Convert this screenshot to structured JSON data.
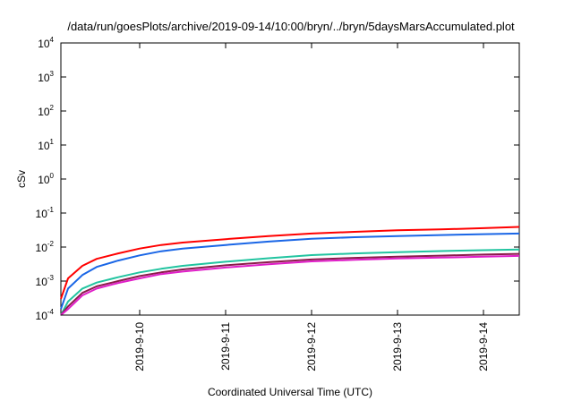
{
  "chart_data": {
    "type": "line",
    "title": "/data/run/goesPlots/archive/2019-09-14/10:00/bryn/../bryn/5daysMarsAccumulated.plot",
    "xlabel": "Coordinated Universal Time (UTC)",
    "ylabel": "cSv",
    "yscale": "log",
    "ylim": [
      0.0001,
      10000
    ],
    "xlim": [
      "2019-09-09 02:00",
      "2019-09-14 10:00"
    ],
    "y_ticks": [
      {
        "base": "10",
        "exp": "-4"
      },
      {
        "base": "10",
        "exp": "-3"
      },
      {
        "base": "10",
        "exp": "-2"
      },
      {
        "base": "10",
        "exp": "-1"
      },
      {
        "base": "10",
        "exp": "0"
      },
      {
        "base": "10",
        "exp": "1"
      },
      {
        "base": "10",
        "exp": "2"
      },
      {
        "base": "10",
        "exp": "3"
      },
      {
        "base": "10",
        "exp": "4"
      }
    ],
    "x_ticks": [
      "2019-9-10",
      "2019-9-11",
      "2019-9-12",
      "2019-9-13",
      "2019-9-14"
    ],
    "x": [
      "2019-09-09 02:00",
      "2019-09-09 04:00",
      "2019-09-09 08:00",
      "2019-09-09 12:00",
      "2019-09-09 18:00",
      "2019-09-10 00:00",
      "2019-09-10 06:00",
      "2019-09-10 12:00",
      "2019-09-11 00:00",
      "2019-09-11 12:00",
      "2019-09-12 00:00",
      "2019-09-12 12:00",
      "2019-09-13 00:00",
      "2019-09-13 12:00",
      "2019-09-14 00:00",
      "2019-09-14 10:00"
    ],
    "grid": false,
    "series": [
      {
        "color": "#ff0000",
        "values": [
          0.0003,
          0.0012,
          0.0028,
          0.0045,
          0.0065,
          0.009,
          0.0115,
          0.0135,
          0.017,
          0.021,
          0.025,
          0.028,
          0.031,
          0.033,
          0.036,
          0.039
        ]
      },
      {
        "color": "#1a66e6",
        "values": [
          0.00015,
          0.0006,
          0.0015,
          0.0026,
          0.004,
          0.0057,
          0.0075,
          0.009,
          0.0115,
          0.0145,
          0.0175,
          0.0195,
          0.021,
          0.0225,
          0.024,
          0.025
        ]
      },
      {
        "color": "#22c4a0",
        "values": [
          0.0001,
          0.00025,
          0.0006,
          0.0009,
          0.0013,
          0.0018,
          0.0023,
          0.0028,
          0.0037,
          0.0047,
          0.0058,
          0.0065,
          0.0071,
          0.0076,
          0.0081,
          0.0085
        ]
      },
      {
        "color": "#8b1a4a",
        "values": [
          0.0001,
          0.00018,
          0.00045,
          0.0007,
          0.001,
          0.0014,
          0.0018,
          0.0022,
          0.0029,
          0.0036,
          0.0043,
          0.0048,
          0.0052,
          0.0056,
          0.006,
          0.0063
        ]
      },
      {
        "color": "#e01ec8",
        "values": [
          0.0001,
          0.00015,
          0.00038,
          0.0006,
          0.00088,
          0.0012,
          0.0016,
          0.0019,
          0.0025,
          0.0031,
          0.0038,
          0.0042,
          0.0046,
          0.0049,
          0.0052,
          0.0055
        ]
      }
    ]
  }
}
